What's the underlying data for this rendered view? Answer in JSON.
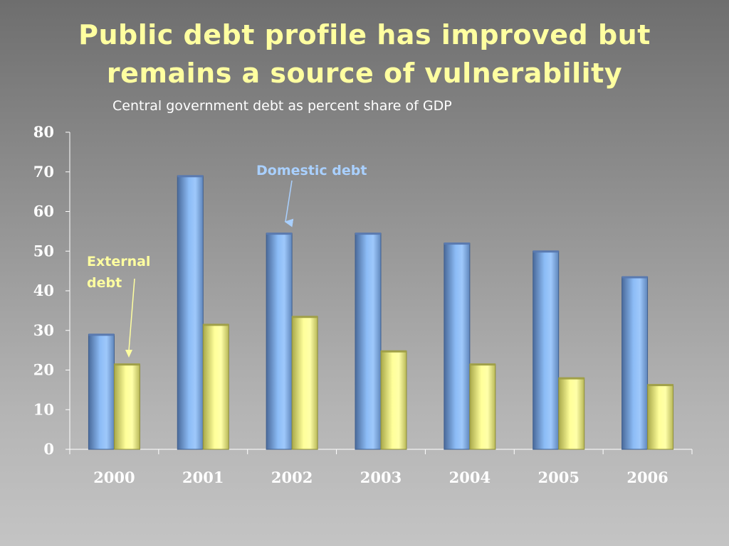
{
  "slide": {
    "title_line1": "Public debt profile has improved but",
    "title_line2": "remains a source of vulnerability",
    "subtitle": "Central government debt as percent share of GDP"
  },
  "colors": {
    "domestic": "#7fb0f0",
    "external": "#ffff88",
    "title": "#ffffa0",
    "axis": "#ffffff"
  },
  "chart_data": {
    "type": "bar",
    "categories": [
      "2000",
      "2001",
      "2002",
      "2003",
      "2004",
      "2005",
      "2006"
    ],
    "series": [
      {
        "name": "Domestic debt",
        "values": [
          29,
          69,
          54.5,
          54.5,
          52,
          50,
          43.5
        ]
      },
      {
        "name": "External debt",
        "values": [
          21.5,
          31.5,
          33.5,
          24.8,
          21.5,
          18,
          16.3
        ]
      }
    ],
    "yticks": [
      0,
      10,
      20,
      30,
      40,
      50,
      60,
      70,
      80
    ],
    "ylim": [
      0,
      80
    ],
    "grid": false,
    "annotations": {
      "domestic": "Domestic debt",
      "external_line1": "External",
      "external_line2": "debt"
    }
  }
}
